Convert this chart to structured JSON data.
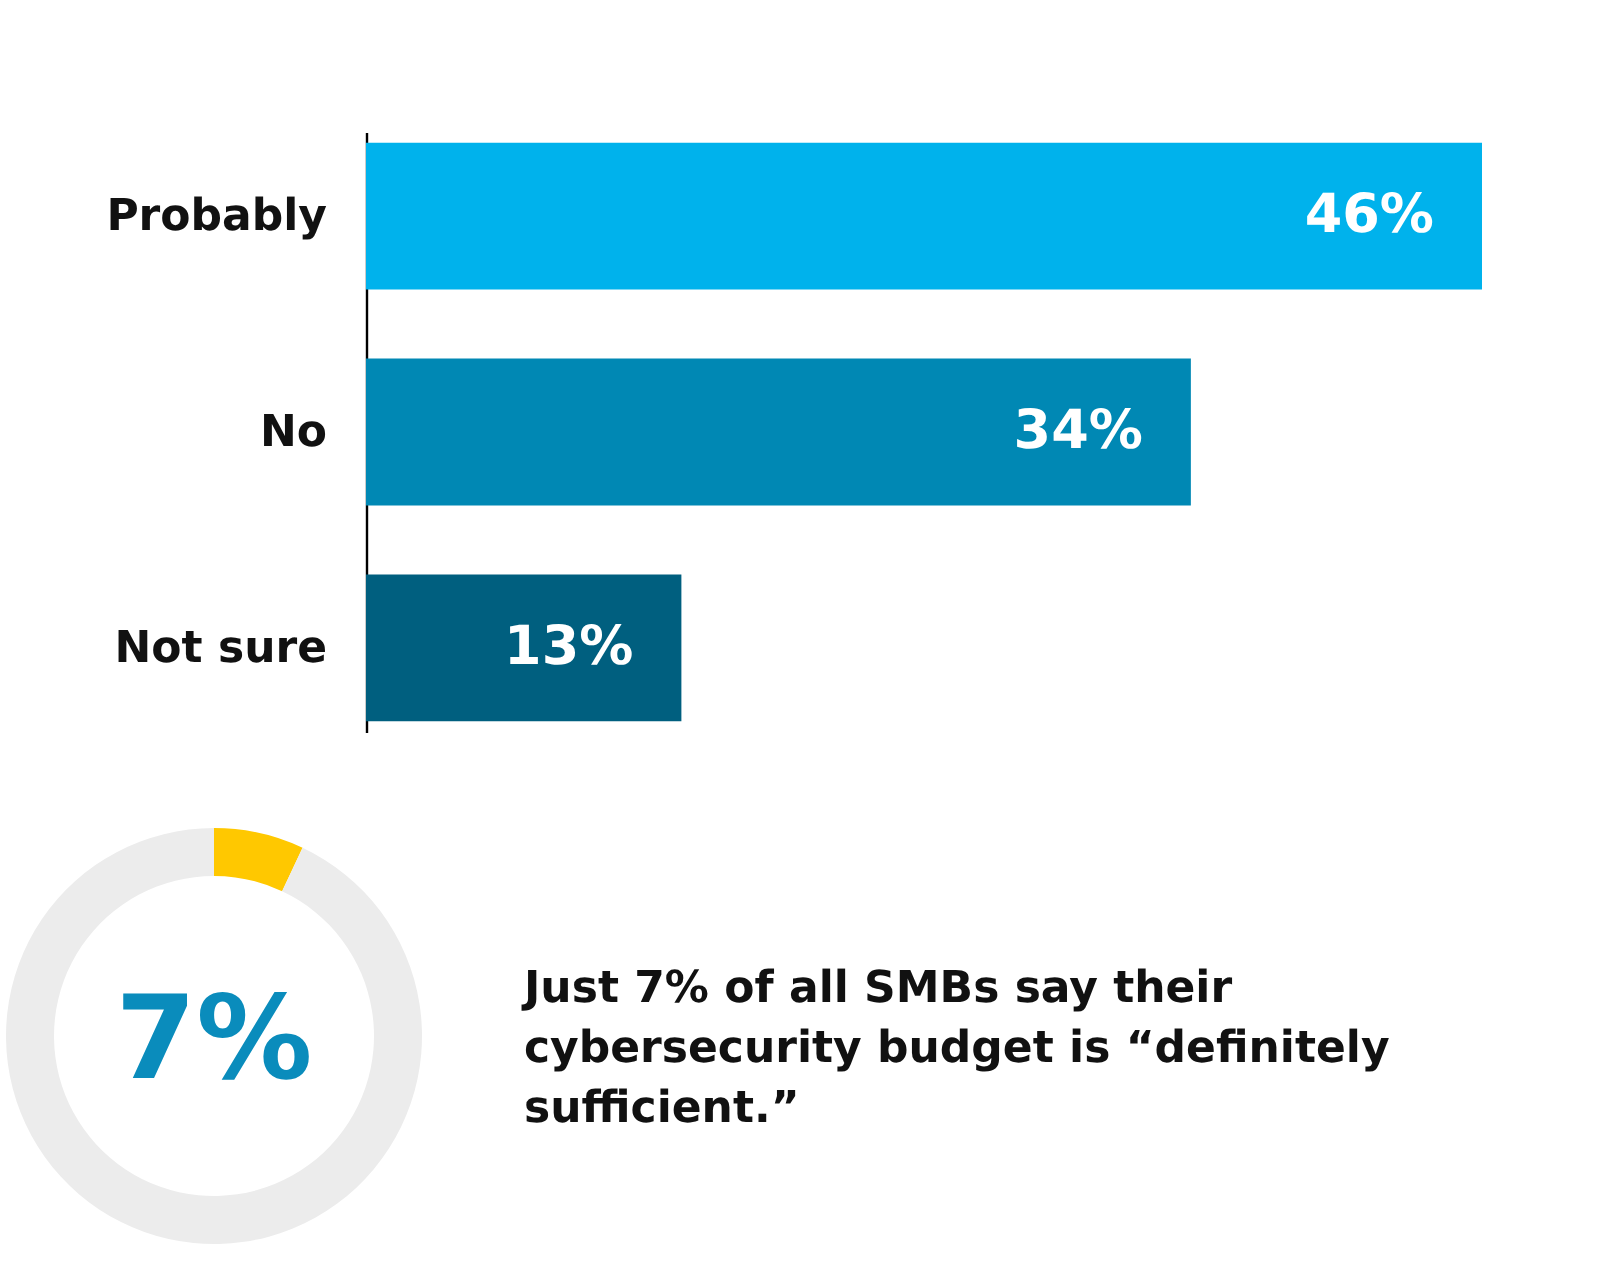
{
  "chart_data": [
    {
      "type": "bar",
      "orientation": "horizontal",
      "categories": [
        "Probably",
        "No",
        "Not sure"
      ],
      "values": [
        46,
        34,
        13
      ],
      "colors": [
        "#00b2ec",
        "#0088b4",
        "#005f7f"
      ],
      "value_labels": [
        "46%",
        "34%",
        "13%"
      ],
      "tick_labels": "y"
    },
    {
      "type": "donut",
      "categories": [
        null,
        null
      ],
      "values": [
        7,
        93
      ],
      "colors": [
        "#ffc800",
        "#ececec"
      ],
      "annotations": [
        "7%",
        "Just 7% of all SMBs say their cybersecurity budget is “definitely sufficient.”"
      ]
    }
  ]
}
